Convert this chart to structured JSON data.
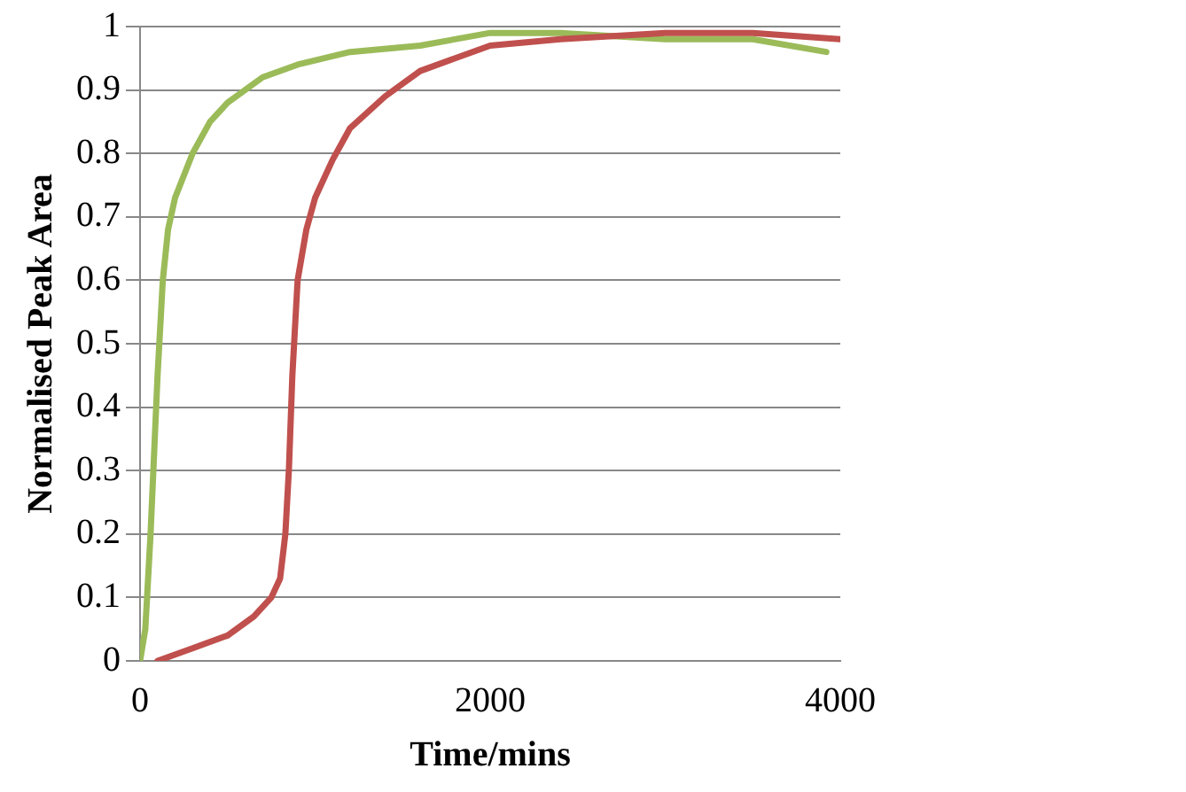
{
  "chart_data": {
    "type": "line",
    "xlabel": "Time/mins",
    "ylabel": "Normalised Peak Area",
    "xlim": [
      0,
      4000
    ],
    "xticks": [
      0,
      2000,
      4000
    ],
    "ylim": [
      0,
      1
    ],
    "yticks": [
      0,
      0.1,
      0.2,
      0.3,
      0.4,
      0.5,
      0.6,
      0.7,
      0.8,
      0.9,
      1
    ],
    "grid": "y",
    "legend": false,
    "marker": "none",
    "line_style": "solid",
    "series": [
      {
        "color": "#c0504d",
        "x": [
          100,
          300,
          500,
          650,
          750,
          800,
          830,
          850,
          870,
          900,
          950,
          1000,
          1100,
          1200,
          1400,
          1600,
          1800,
          2000,
          2400,
          3000,
          3500,
          4000
        ],
        "values": [
          0,
          0.02,
          0.04,
          0.07,
          0.1,
          0.13,
          0.2,
          0.3,
          0.45,
          0.6,
          0.68,
          0.73,
          0.79,
          0.84,
          0.89,
          0.93,
          0.95,
          0.97,
          0.98,
          0.99,
          0.99,
          0.98
        ]
      },
      {
        "color": "#9bbb59",
        "x": [
          0,
          30,
          60,
          100,
          130,
          160,
          200,
          300,
          400,
          500,
          700,
          900,
          1200,
          1600,
          2000,
          2400,
          3000,
          3500,
          3920
        ],
        "values": [
          0,
          0.05,
          0.2,
          0.45,
          0.6,
          0.68,
          0.73,
          0.8,
          0.85,
          0.88,
          0.92,
          0.94,
          0.96,
          0.97,
          0.99,
          0.99,
          0.98,
          0.98,
          0.96
        ]
      }
    ]
  }
}
